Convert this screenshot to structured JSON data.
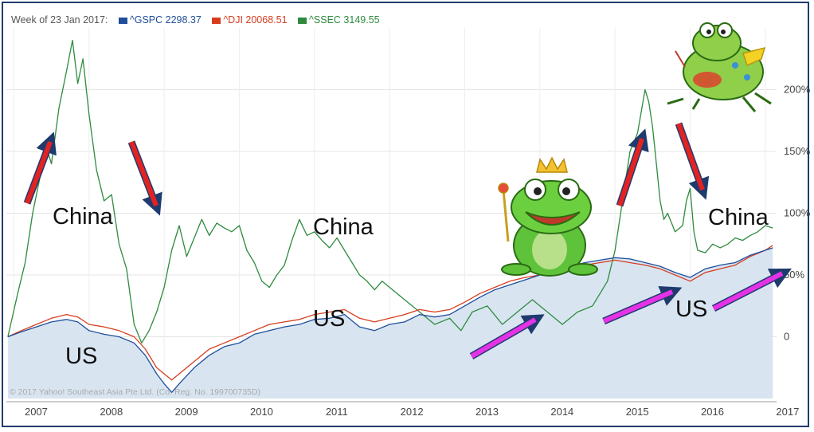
{
  "legend": {
    "week_label": "Week of 23 Jan 2017:",
    "items": [
      {
        "label": "^GSPC 2298.37",
        "color": "#1f4e9a"
      },
      {
        "label": "^DJI 20068.51",
        "color": "#d63d1e"
      },
      {
        "label": "^SSEC 3149.55",
        "color": "#2e8b3e"
      }
    ]
  },
  "copyright": "© 2017 Yahoo! Southeast Asia Pte Ltd. (Co. Reg. No. 199700735D)",
  "annotations": {
    "china_1": "China",
    "china_2": "China",
    "china_3": "China",
    "us_1": "US",
    "us_2": "US",
    "us_3": "US"
  },
  "chart_data": {
    "type": "line",
    "x_ticks": [
      "2007",
      "2008",
      "2009",
      "2010",
      "2011",
      "2012",
      "2013",
      "2014",
      "2015",
      "2016",
      "2017"
    ],
    "y_ticks": [
      "0",
      "50%",
      "100%",
      "150%",
      "200%"
    ],
    "ylim": [
      -50,
      250
    ],
    "xlim": [
      2006.9,
      2017.15
    ],
    "series": [
      {
        "name": "^SSEC 3149.55",
        "color": "#2e8b3e",
        "x": [
          2006.92,
          2007.05,
          2007.15,
          2007.25,
          2007.35,
          2007.45,
          2007.5,
          2007.6,
          2007.7,
          2007.78,
          2007.85,
          2007.92,
          2008.0,
          2008.1,
          2008.2,
          2008.3,
          2008.4,
          2008.5,
          2008.6,
          2008.7,
          2008.8,
          2008.9,
          2009.0,
          2009.1,
          2009.2,
          2009.3,
          2009.4,
          2009.5,
          2009.6,
          2009.7,
          2009.8,
          2009.9,
          2010.0,
          2010.1,
          2010.2,
          2010.3,
          2010.4,
          2010.5,
          2010.6,
          2010.7,
          2010.8,
          2010.9,
          2011.0,
          2011.1,
          2011.2,
          2011.3,
          2011.4,
          2011.5,
          2011.6,
          2011.7,
          2011.8,
          2011.9,
          2012.0,
          2012.2,
          2012.4,
          2012.6,
          2012.8,
          2012.95,
          2013.1,
          2013.3,
          2013.5,
          2013.7,
          2013.9,
          2014.1,
          2014.3,
          2014.5,
          2014.7,
          2014.9,
          2015.0,
          2015.1,
          2015.2,
          2015.3,
          2015.4,
          2015.45,
          2015.5,
          2015.55,
          2015.6,
          2015.65,
          2015.7,
          2015.8,
          2015.9,
          2015.95,
          2016.0,
          2016.05,
          2016.1,
          2016.2,
          2016.3,
          2016.4,
          2016.5,
          2016.6,
          2016.7,
          2016.8,
          2016.9,
          2017.0,
          2017.1
        ],
        "values": [
          0,
          35,
          60,
          100,
          130,
          150,
          140,
          185,
          215,
          240,
          205,
          225,
          180,
          135,
          110,
          115,
          75,
          55,
          10,
          -5,
          5,
          20,
          40,
          70,
          90,
          65,
          80,
          95,
          82,
          92,
          88,
          85,
          90,
          70,
          60,
          45,
          40,
          50,
          58,
          78,
          95,
          82,
          85,
          78,
          72,
          80,
          70,
          60,
          50,
          45,
          38,
          45,
          40,
          30,
          20,
          10,
          15,
          5,
          20,
          25,
          10,
          20,
          30,
          20,
          10,
          20,
          25,
          45,
          70,
          110,
          150,
          165,
          200,
          190,
          170,
          140,
          110,
          95,
          100,
          85,
          90,
          110,
          120,
          85,
          70,
          68,
          75,
          72,
          75,
          80,
          78,
          82,
          85,
          90,
          88
        ]
      },
      {
        "name": "^DJI 20068.51",
        "color": "#d63d1e",
        "x": [
          2006.92,
          2007.1,
          2007.3,
          2007.5,
          2007.7,
          2007.85,
          2008.0,
          2008.2,
          2008.4,
          2008.6,
          2008.75,
          2008.9,
          2009.0,
          2009.1,
          2009.2,
          2009.4,
          2009.6,
          2009.8,
          2010.0,
          2010.2,
          2010.4,
          2010.6,
          2010.8,
          2011.0,
          2011.2,
          2011.4,
          2011.6,
          2011.8,
          2012.0,
          2012.2,
          2012.4,
          2012.6,
          2012.8,
          2013.0,
          2013.2,
          2013.4,
          2013.6,
          2013.8,
          2014.0,
          2014.2,
          2014.4,
          2014.6,
          2014.8,
          2015.0,
          2015.2,
          2015.4,
          2015.6,
          2015.8,
          2016.0,
          2016.2,
          2016.4,
          2016.6,
          2016.8,
          2017.0,
          2017.1
        ],
        "values": [
          0,
          5,
          10,
          15,
          18,
          16,
          10,
          8,
          5,
          0,
          -10,
          -25,
          -30,
          -35,
          -30,
          -20,
          -10,
          -5,
          0,
          5,
          10,
          12,
          14,
          18,
          20,
          22,
          15,
          12,
          15,
          18,
          22,
          20,
          22,
          28,
          35,
          40,
          45,
          48,
          50,
          52,
          55,
          58,
          60,
          62,
          60,
          58,
          55,
          50,
          45,
          52,
          55,
          58,
          65,
          70,
          74
        ]
      },
      {
        "name": "^GSPC 2298.37",
        "color": "#1f4e9a",
        "x": [
          2006.92,
          2007.1,
          2007.3,
          2007.5,
          2007.7,
          2007.85,
          2008.0,
          2008.2,
          2008.4,
          2008.6,
          2008.75,
          2008.9,
          2009.0,
          2009.1,
          2009.2,
          2009.4,
          2009.6,
          2009.8,
          2010.0,
          2010.2,
          2010.4,
          2010.6,
          2010.8,
          2011.0,
          2011.2,
          2011.4,
          2011.6,
          2011.8,
          2012.0,
          2012.2,
          2012.4,
          2012.6,
          2012.8,
          2013.0,
          2013.2,
          2013.4,
          2013.6,
          2013.8,
          2014.0,
          2014.2,
          2014.4,
          2014.6,
          2014.8,
          2015.0,
          2015.2,
          2015.4,
          2015.6,
          2015.8,
          2016.0,
          2016.2,
          2016.4,
          2016.6,
          2016.8,
          2017.0,
          2017.1
        ],
        "values": [
          0,
          4,
          8,
          12,
          14,
          12,
          5,
          2,
          0,
          -5,
          -15,
          -30,
          -38,
          -45,
          -38,
          -25,
          -15,
          -8,
          -5,
          2,
          5,
          8,
          10,
          14,
          15,
          18,
          8,
          5,
          10,
          12,
          18,
          16,
          18,
          25,
          32,
          38,
          42,
          46,
          50,
          54,
          57,
          60,
          62,
          64,
          63,
          60,
          57,
          52,
          48,
          55,
          58,
          60,
          66,
          70,
          72
        ]
      }
    ]
  }
}
